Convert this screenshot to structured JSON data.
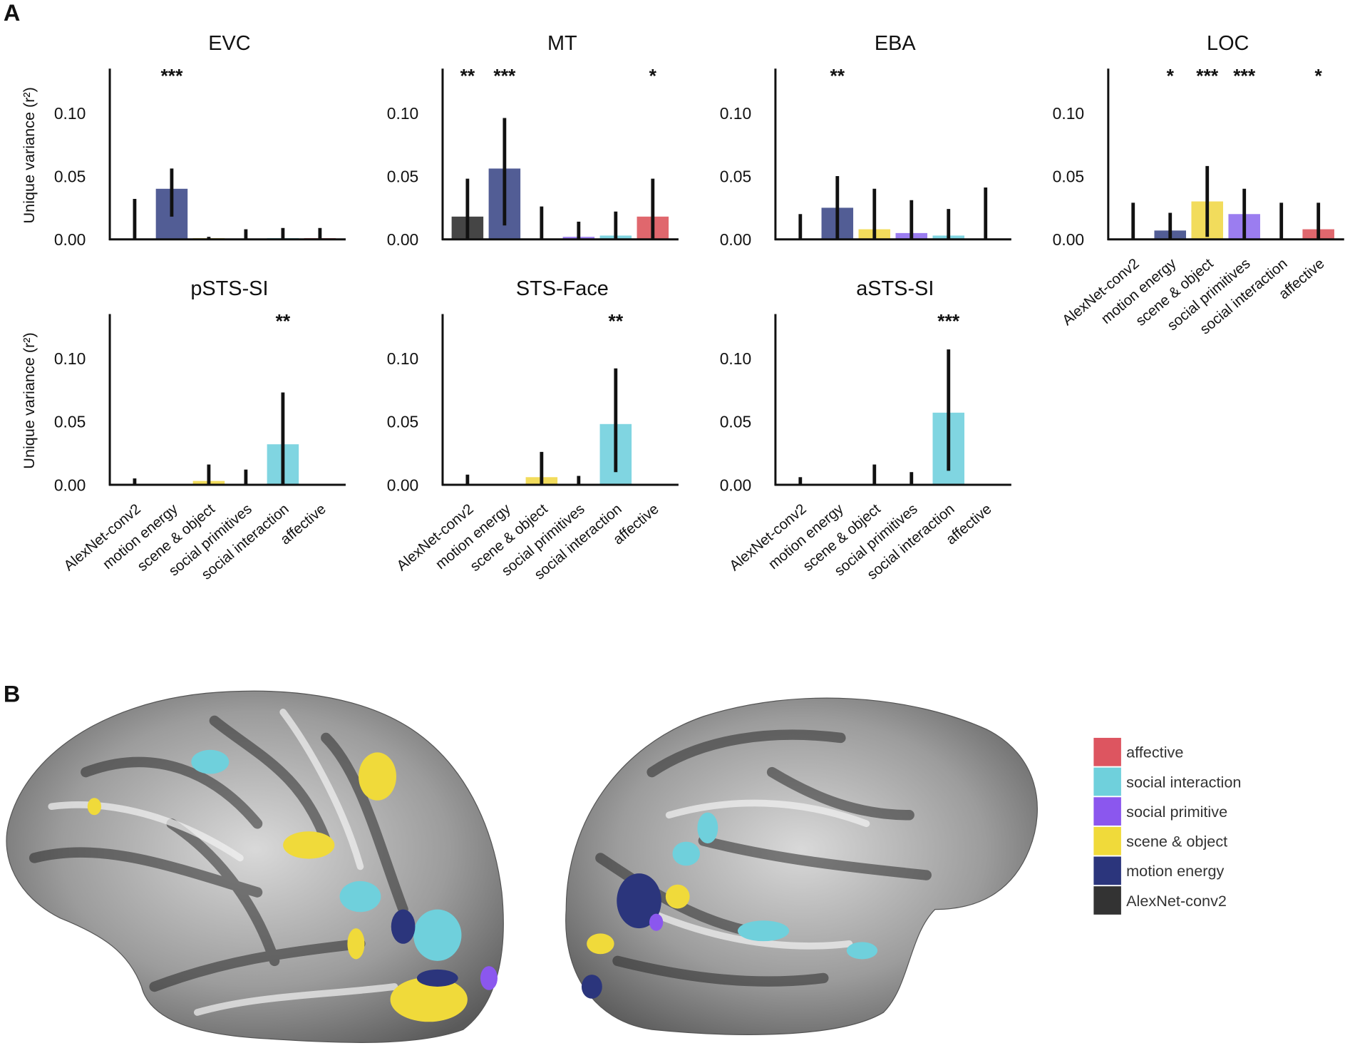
{
  "panel_labels": [
    "A",
    "B"
  ],
  "chart_data": [
    {
      "type": "bar",
      "title": "EVC",
      "y_label": "Unique variance (r²)",
      "categories": [
        null,
        null,
        null,
        null,
        null,
        null
      ],
      "colors": [
        "#454545",
        "#525d95",
        "#f2dc5c",
        "#9b7df0",
        "#80d5e1",
        "#e0676d"
      ],
      "values": [
        0,
        0.04,
        0.001,
        0,
        0.001,
        0.001
      ],
      "ci": [
        [
          0,
          0.032
        ],
        [
          0.018,
          0.056
        ],
        [
          0,
          0.002
        ],
        [
          0,
          0.008
        ],
        [
          0,
          0.009
        ],
        [
          0,
          0.009
        ]
      ],
      "stars": [
        null,
        "***",
        null,
        null,
        null,
        null
      ],
      "ylim": [
        0,
        0.135
      ],
      "yticks": [
        {
          "value": 0,
          "label": "0.00"
        },
        0.05,
        {
          "value": 0.1,
          "label": "0.10"
        }
      ]
    },
    {
      "type": "bar",
      "title": "MT",
      "categories": [
        null,
        null,
        null,
        null,
        null,
        null
      ],
      "colors": [
        "#454545",
        "#525d95",
        "#f2dc5c",
        "#9b7df0",
        "#80d5e1",
        "#e0676d"
      ],
      "values": [
        0.018,
        0.056,
        0,
        0.002,
        0.003,
        0.018
      ],
      "ci": [
        [
          0,
          0.048
        ],
        [
          0.011,
          0.096
        ],
        [
          0,
          0.026
        ],
        [
          0,
          0.014
        ],
        [
          0,
          0.022
        ],
        [
          0,
          0.048
        ]
      ],
      "stars": [
        "**",
        "***",
        null,
        null,
        null,
        "*"
      ],
      "ylim": [
        0,
        0.135
      ],
      "yticks": [
        {
          "value": 0,
          "label": "0.00"
        },
        0.05,
        {
          "value": 0.1,
          "label": "0.10"
        }
      ]
    },
    {
      "type": "bar",
      "title": "EBA",
      "categories": [
        null,
        null,
        null,
        null,
        null,
        null
      ],
      "colors": [
        "#454545",
        "#525d95",
        "#f2dc5c",
        "#9b7df0",
        "#80d5e1",
        "#e0676d"
      ],
      "values": [
        0,
        0.025,
        0.008,
        0.005,
        0.003,
        0
      ],
      "ci": [
        [
          0,
          0.02
        ],
        [
          0,
          0.05
        ],
        [
          0,
          0.04
        ],
        [
          0,
          0.031
        ],
        [
          0,
          0.024
        ],
        [
          0,
          0.041
        ]
      ],
      "stars": [
        null,
        "**",
        null,
        null,
        null,
        null
      ],
      "ylim": [
        0,
        0.135
      ],
      "yticks": [
        {
          "value": 0,
          "label": "0.00"
        },
        0.05,
        {
          "value": 0.1,
          "label": "0.10"
        }
      ]
    },
    {
      "type": "bar",
      "title": "LOC",
      "categories": [
        "AlexNet-conv2",
        "motion energy",
        "scene & object",
        "social primitives",
        "social interaction",
        "affective"
      ],
      "colors": [
        "#454545",
        "#525d95",
        "#f2dc5c",
        "#9b7df0",
        "#80d5e1",
        "#e0676d"
      ],
      "values": [
        0,
        0.007,
        0.03,
        0.02,
        0,
        0.008
      ],
      "ci": [
        [
          0,
          0.029
        ],
        [
          0,
          0.021
        ],
        [
          0.002,
          0.058
        ],
        [
          0,
          0.04
        ],
        [
          0,
          0.029
        ],
        [
          0,
          0.029
        ]
      ],
      "stars": [
        null,
        "*",
        "***",
        "***",
        null,
        "*"
      ],
      "ylim": [
        0,
        0.135
      ],
      "yticks": [
        {
          "value": 0,
          "label": "0.00"
        },
        0.05,
        {
          "value": 0.1,
          "label": "0.10"
        }
      ]
    },
    {
      "type": "bar",
      "title": "pSTS-SI",
      "y_label": "Unique variance (r²)",
      "categories": [
        "AlexNet-conv2",
        "motion energy",
        "scene & object",
        "social primitives",
        "social interaction",
        "affective"
      ],
      "colors": [
        "#454545",
        "#525d95",
        "#f2dc5c",
        "#9b7df0",
        "#80d5e1",
        "#e0676d"
      ],
      "values": [
        0,
        0,
        0.003,
        0,
        0.032,
        0
      ],
      "ci": [
        [
          0,
          0.005
        ],
        null,
        [
          0,
          0.016
        ],
        [
          0,
          0.012
        ],
        [
          0,
          0.073
        ],
        null
      ],
      "stars": [
        null,
        null,
        null,
        null,
        "**",
        null
      ],
      "ylim": [
        0,
        0.135
      ],
      "yticks": [
        {
          "value": 0,
          "label": "0.00"
        },
        0.05,
        {
          "value": 0.1,
          "label": "0.10"
        }
      ]
    },
    {
      "type": "bar",
      "title": "STS-Face",
      "categories": [
        "AlexNet-conv2",
        "motion energy",
        "scene & object",
        "social primitives",
        "social interaction",
        "affective"
      ],
      "colors": [
        "#454545",
        "#525d95",
        "#f2dc5c",
        "#9b7df0",
        "#80d5e1",
        "#e0676d"
      ],
      "values": [
        0,
        0,
        0.006,
        0,
        0.048,
        0
      ],
      "ci": [
        [
          0,
          0.008
        ],
        null,
        [
          0,
          0.026
        ],
        [
          0,
          0.007
        ],
        [
          0.01,
          0.092
        ],
        null
      ],
      "stars": [
        null,
        null,
        null,
        null,
        "**",
        null
      ],
      "ylim": [
        0,
        0.135
      ],
      "yticks": [
        {
          "value": 0,
          "label": "0.00"
        },
        0.05,
        {
          "value": 0.1,
          "label": "0.10"
        }
      ]
    },
    {
      "type": "bar",
      "title": "aSTS-SI",
      "categories": [
        "AlexNet-conv2",
        "motion energy",
        "scene & object",
        "social primitives",
        "social interaction",
        "affective"
      ],
      "colors": [
        "#454545",
        "#525d95",
        "#f2dc5c",
        "#9b7df0",
        "#80d5e1",
        "#e0676d"
      ],
      "values": [
        0,
        0,
        0,
        0,
        0.057,
        0
      ],
      "ci": [
        [
          0,
          0.006
        ],
        null,
        [
          0,
          0.016
        ],
        [
          0,
          0.01
        ],
        [
          0.011,
          0.107
        ],
        null
      ],
      "stars": [
        null,
        null,
        null,
        null,
        "***",
        null
      ],
      "ylim": [
        0,
        0.135
      ],
      "yticks": [
        {
          "value": 0,
          "label": "0.00"
        },
        0.05,
        {
          "value": 0.1,
          "label": "0.10"
        }
      ]
    }
  ],
  "brain_legend": {
    "items": [
      {
        "label": "affective",
        "color": "#dd5560"
      },
      {
        "label": "social interaction",
        "color": "#6fd0dc"
      },
      {
        "label": "social primitive",
        "color": "#8b57ee"
      },
      {
        "label": "scene & object",
        "color": "#f0da3a"
      },
      {
        "label": "motion energy",
        "color": "#2b357c"
      },
      {
        "label": "AlexNet-conv2",
        "color": "#333333"
      }
    ]
  }
}
